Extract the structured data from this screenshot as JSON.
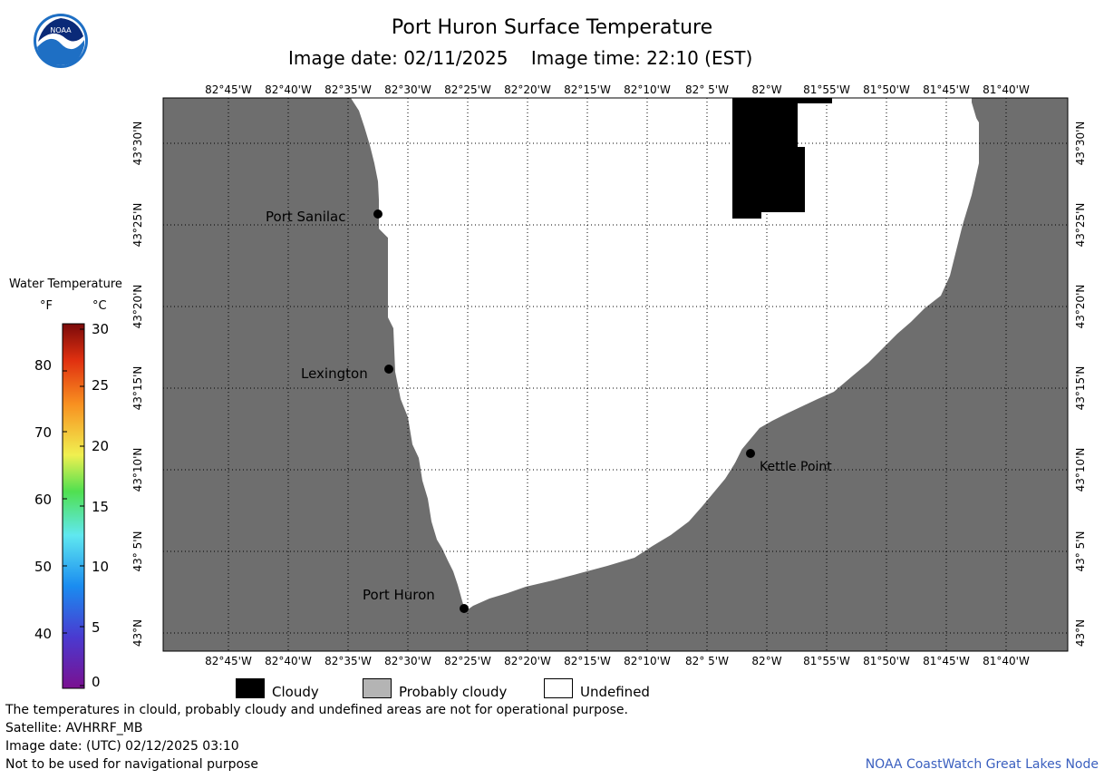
{
  "title": "Port Huron Surface Temperature",
  "subtitle": "Image date: 02/11/2025    Image time: 22:10 (EST)",
  "logo_text": "NOAA",
  "lon_labels": [
    "82°45'W",
    "82°40'W",
    "82°35'W",
    "82°30'W",
    "82°25'W",
    "82°20'W",
    "82°15'W",
    "82°10'W",
    "82° 5'W",
    "82°W",
    "81°55'W",
    "81°50'W",
    "81°45'W",
    "81°40'W"
  ],
  "lat_labels": [
    "43°30'N",
    "43°25'N",
    "43°20'N",
    "43°15'N",
    "43°10'N",
    "43° 5'N",
    "43°N"
  ],
  "cities": {
    "port_sanilac": "Port Sanilac",
    "lexington": "Lexington",
    "port_huron": "Port Huron",
    "kettle_point": "Kettle Point"
  },
  "legend": {
    "title": "Water Temperature",
    "unit_f": "°F",
    "unit_c": "°C",
    "f_ticks": [
      "80",
      "70",
      "60",
      "50",
      "40"
    ],
    "c_ticks": [
      "30",
      "25",
      "20",
      "15",
      "10",
      "5",
      "0"
    ],
    "cloudy": "Cloudy",
    "probably_cloudy": "Probably cloudy",
    "undefined": "Undefined",
    "colors": {
      "land": "#6e6e6e",
      "cloudy": "#000000",
      "probably_cloudy": "#b4b4b4",
      "undefined": "#ffffff"
    }
  },
  "footer": {
    "line1": "The temperatures in clould, probably cloudy and undefined areas are not for operational purpose.",
    "line2": "Satellite: AVHRRF_MB",
    "line3": "Image date: (UTC) 02/12/2025  03:10",
    "line4": "Not to be used for navigational purpose",
    "credit": "NOAA CoastWatch Great Lakes Node"
  }
}
